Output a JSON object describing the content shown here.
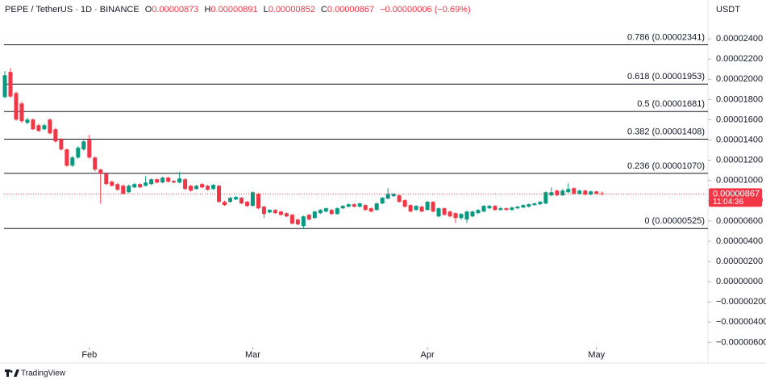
{
  "chart_data": {
    "type": "candlestick",
    "header": {
      "symbol": "PEPE / TetherUS · 1D · BINANCE",
      "open_label": "O",
      "high_label": "H",
      "low_label": "L",
      "close_label": "C",
      "change": "−0.00000006 (−0.69%)"
    },
    "currency": "USDT",
    "countdown": "11:04:36",
    "brand": "TradingView",
    "up_color": "#089981",
    "down_color": "#f23645",
    "open": [
      1.825e-05,
      2.072e-05,
      1.864e-05,
      1.761e-05,
      1.57e-05,
      1.602e-05,
      1.546e-05,
      1.506e-05,
      1.602e-05,
      1.506e-05,
      1.41e-05,
      1.307e-05,
      1.147e-05,
      1.227e-05,
      1.307e-05,
      1.402e-05,
      1.227e-05,
      1.108e-05,
      1.068e-05,
      9.88e-06,
      9.64e-06,
      9.48e-06,
      8.84e-06,
      9.32e-06,
      9.64e-06,
      9.48e-06,
      9.64e-06,
      1.012e-05,
      9.8e-06,
      1.028e-05,
      9.96e-06,
      9.8e-06,
      1.012e-05,
      9.48e-06,
      9.16e-06,
      9.64e-06,
      9.48e-06,
      9.16e-06,
      9.48e-06,
      7.89e-06,
      7.89e-06,
      8.13e-06,
      8.29e-06,
      7.89e-06,
      7.49e-06,
      8.68e-06,
      7.41e-06,
      6.85e-06,
      7.09e-06,
      6.93e-06,
      6.77e-06,
      6.61e-06,
      6.14e-06,
      5.5e-06,
      6.61e-06,
      6.29e-06,
      6.77e-06,
      6.93e-06,
      7.09e-06,
      6.69e-06,
      7.25e-06,
      7.41e-06,
      7.65e-06,
      7.41e-06,
      7.57e-06,
      7.25e-06,
      7.09e-06,
      7.73e-06,
      8.21e-06,
      8.45e-06,
      8.53e-06,
      8.05e-06,
      7.57e-06,
      7.09e-06,
      7.41e-06,
      7.09e-06,
      7.89e-06,
      6.45e-06,
      7.25e-06,
      6.93e-06,
      6.77e-06,
      6.29e-06,
      6.14e-06,
      6.45e-06,
      6.77e-06,
      6.93e-06,
      7.25e-06,
      7.49e-06,
      7.09e-06,
      7.25e-06,
      7.09e-06,
      7.25e-06,
      7.33e-06,
      7.41e-06,
      7.57e-06,
      7.65e-06,
      7.73e-06,
      8.53e-06,
      9e-06,
      8.53e-06,
      8.84e-06,
      9.24e-06,
      8.68e-06,
      9e-06,
      8.61e-06,
      8.92e-06,
      8.73e-06
    ],
    "high": [
      2.08e-05,
      2.112e-05,
      1.88e-05,
      1.78e-05,
      1.62e-05,
      1.615e-05,
      1.56e-05,
      1.56e-05,
      1.615e-05,
      1.52e-05,
      1.42e-05,
      1.315e-05,
      1.24e-05,
      1.34e-05,
      1.4e-05,
      1.45e-05,
      1.24e-05,
      1.115e-05,
      1.08e-05,
      1e-05,
      9.75e-06,
      9.6e-06,
      9.6e-06,
      9.75e-06,
      9.72e-06,
      1.044e-05,
      1.02e-05,
      1.02e-05,
      1.036e-05,
      1.036e-05,
      1.004e-05,
      1.084e-05,
      1.02e-05,
      9.56e-06,
      9.56e-06,
      9.72e-06,
      9.56e-06,
      9.64e-06,
      9.56e-06,
      8e-06,
      8.37e-06,
      8.45e-06,
      8.37e-06,
      7.97e-06,
      8.92e-06,
      8.76e-06,
      7.49e-06,
      7.17e-06,
      7.17e-06,
      7.01e-06,
      6.85e-06,
      6.69e-06,
      6.22e-06,
      6.53e-06,
      6.69e-06,
      7.01e-06,
      7.17e-06,
      7.33e-06,
      7.17e-06,
      7.33e-06,
      7.57e-06,
      7.73e-06,
      7.73e-06,
      7.81e-06,
      7.65e-06,
      7.33e-06,
      7.81e-06,
      8.37e-06,
      9.24e-06,
      8.76e-06,
      8.61e-06,
      8.13e-06,
      7.65e-06,
      7.57e-06,
      7.49e-06,
      7.97e-06,
      7.97e-06,
      7.33e-06,
      7.33e-06,
      7.01e-06,
      6.85e-06,
      6.77e-06,
      7.01e-06,
      7.01e-06,
      7.17e-06,
      7.57e-06,
      7.57e-06,
      7.57e-06,
      7.4e-06,
      7.33e-06,
      7.41e-06,
      7.49e-06,
      7.65e-06,
      7.73e-06,
      7.81e-06,
      7.97e-06,
      8.92e-06,
      9.32e-06,
      9.08e-06,
      9.16e-06,
      9.72e-06,
      9.32e-06,
      9.08e-06,
      9.08e-06,
      9e-06,
      9e-06,
      8.91e-06
    ],
    "low": [
      1.81e-05,
      1.82e-05,
      1.59e-05,
      1.57e-05,
      1.555e-05,
      1.5e-05,
      1.48e-05,
      1.495e-05,
      1.455e-05,
      1.375e-05,
      1.295e-05,
      1.135e-05,
      1.135e-05,
      1.215e-05,
      1.295e-05,
      1.215e-05,
      1.09e-05,
      7.7e-06,
      9.55e-06,
      9.4e-06,
      9e-06,
      8.6e-06,
      8.75e-06,
      9.25e-06,
      9.25e-06,
      9.4e-06,
      9.55e-06,
      9.72e-06,
      9.72e-06,
      9.8e-06,
      9.72e-06,
      9.72e-06,
      9.08e-06,
      8.9e-06,
      9.08e-06,
      9.25e-06,
      9e-06,
      9.08e-06,
      7.8e-06,
      7.49e-06,
      7.8e-06,
      8.05e-06,
      7.65e-06,
      7.4e-06,
      7.41e-06,
      7.17e-06,
      6.29e-06,
      6.77e-06,
      6.69e-06,
      6.53e-06,
      6.37e-06,
      5.66e-06,
      5.58e-06,
      5.18e-06,
      6.06e-06,
      6.22e-06,
      6.69e-06,
      6.85e-06,
      6.61e-06,
      6.61e-06,
      7.17e-06,
      7.33e-06,
      7.33e-06,
      7.33e-06,
      7.01e-06,
      6.85e-06,
      7.01e-06,
      7.65e-06,
      8.13e-06,
      8.37e-06,
      7.81e-06,
      7.33e-06,
      6.85e-06,
      7.01e-06,
      6.85e-06,
      7.01e-06,
      6.85e-06,
      6.37e-06,
      6.53e-06,
      6.37e-06,
      5.8e-06,
      6.1e-06,
      5.8e-06,
      6.37e-06,
      6.69e-06,
      6.85e-06,
      7.17e-06,
      7.01e-06,
      7.01e-06,
      7.01e-06,
      7.01e-06,
      7.17e-06,
      7.25e-06,
      7.33e-06,
      7.49e-06,
      7.57e-06,
      7.65e-06,
      8.45e-06,
      8.45e-06,
      8.45e-06,
      8.76e-06,
      8.6e-06,
      8.6e-06,
      8.53e-06,
      8.53e-06,
      8.6e-06,
      8.52e-06
    ],
    "close": [
      2.04e-05,
      1.83e-05,
      1.602e-05,
      1.586e-05,
      1.602e-05,
      1.506e-05,
      1.49e-05,
      1.546e-05,
      1.466e-05,
      1.386e-05,
      1.307e-05,
      1.147e-05,
      1.227e-05,
      1.323e-05,
      1.386e-05,
      1.227e-05,
      1.108e-05,
      1.068e-05,
      9.64e-06,
      9.48e-06,
      9.08e-06,
      8.68e-06,
      9.48e-06,
      9.64e-06,
      9.32e-06,
      9.8e-06,
      1.012e-05,
      9.8e-06,
      1.028e-05,
      9.88e-06,
      9.8e-06,
      1.02e-05,
      9.16e-06,
      9e-06,
      9.48e-06,
      9.32e-06,
      9.08e-06,
      9.56e-06,
      7.89e-06,
      7.57e-06,
      8.29e-06,
      8.37e-06,
      7.73e-06,
      7.49e-06,
      8.84e-06,
      7.25e-06,
      6.69e-06,
      7.09e-06,
      6.77e-06,
      6.61e-06,
      6.45e-06,
      5.74e-06,
      5.66e-06,
      6.45e-06,
      6.14e-06,
      6.93e-06,
      7.09e-06,
      7.25e-06,
      6.69e-06,
      7.25e-06,
      7.49e-06,
      7.65e-06,
      7.41e-06,
      7.73e-06,
      7.09e-06,
      6.93e-06,
      7.73e-06,
      8.29e-06,
      8.68e-06,
      8.68e-06,
      7.89e-06,
      7.41e-06,
      6.93e-06,
      7.49e-06,
      6.93e-06,
      7.89e-06,
      6.93e-06,
      7.25e-06,
      6.61e-06,
      6.45e-06,
      6.29e-06,
      6.69e-06,
      6.93e-06,
      6.93e-06,
      7.09e-06,
      7.49e-06,
      7.49e-06,
      7.09e-06,
      7.25e-06,
      7.09e-06,
      7.33e-06,
      7.41e-06,
      7.57e-06,
      7.65e-06,
      7.73e-06,
      7.89e-06,
      8.84e-06,
      8.84e-06,
      8.53e-06,
      9e-06,
      9.16e-06,
      8.68e-06,
      9e-06,
      8.61e-06,
      8.92e-06,
      8.68e-06,
      8.67e-06
    ],
    "fib_levels": [
      {
        "value": 2.341e-05,
        "label": "0.786 (0.00002341)"
      },
      {
        "value": 1.953e-05,
        "label": "0.618 (0.00001953)"
      },
      {
        "value": 1.681e-05,
        "label": "0.5 (0.00001681)"
      },
      {
        "value": 1.408e-05,
        "label": "0.382 (0.00001408)"
      },
      {
        "value": 1.07e-05,
        "label": "0.236 (0.00001070)"
      },
      {
        "value": 5.25e-06,
        "label": "0 (0.00000525)"
      }
    ],
    "xlim": [
      -0.5,
      124.5
    ],
    "xticks": [
      {
        "value": 15,
        "label": "Feb"
      },
      {
        "value": 44,
        "label": "Mar"
      },
      {
        "value": 75,
        "label": "Apr"
      },
      {
        "value": 105,
        "label": "May"
      }
    ],
    "ylim": [
      -6.45e-06,
      2.72e-05
    ],
    "yticks": [
      {
        "value": 2.4e-05,
        "label": "0.00002400"
      },
      {
        "value": 2.2e-05,
        "label": "0.00002200"
      },
      {
        "value": 2e-05,
        "label": "0.00002000"
      },
      {
        "value": 1.8e-05,
        "label": "0.00001800"
      },
      {
        "value": 1.6e-05,
        "label": "0.00001600"
      },
      {
        "value": 1.4e-05,
        "label": "0.00001400"
      },
      {
        "value": 1.2e-05,
        "label": "0.00001200"
      },
      {
        "value": 1e-05,
        "label": "0.00001000"
      },
      {
        "value": 8e-06,
        "label": "0.00000800"
      },
      {
        "value": 6e-06,
        "label": "0.00000600"
      },
      {
        "value": 4e-06,
        "label": "0.00000400"
      },
      {
        "value": 2e-06,
        "label": "0.00000200"
      },
      {
        "value": 0,
        "label": "0.00000000"
      },
      {
        "value": -2e-06,
        "label": "−0.00000200"
      },
      {
        "value": -4e-06,
        "label": "−0.00000400"
      },
      {
        "value": -6e-06,
        "label": "−0.00000600"
      }
    ]
  }
}
